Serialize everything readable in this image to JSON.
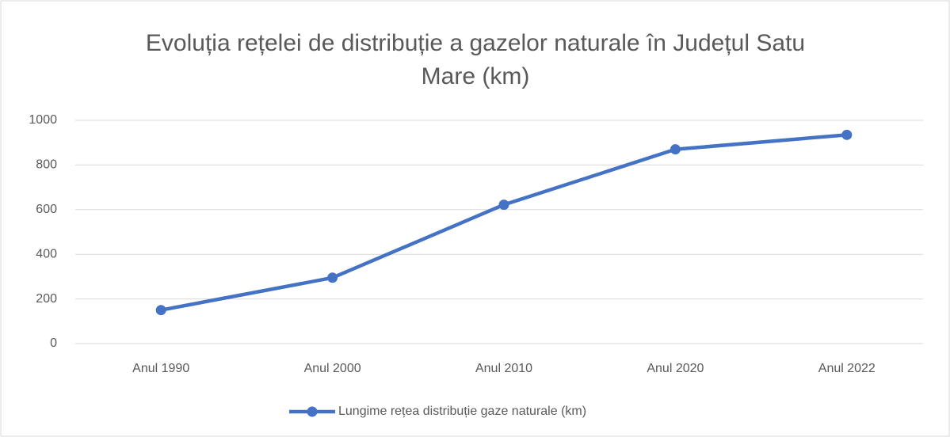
{
  "chart_data": {
    "type": "line",
    "title": "Evoluția rețelei de distribuție a gazelor naturale în Județul Satu Mare (km)",
    "categories": [
      "Anul 1990",
      "Anul 2000",
      "Anul 2010",
      "Anul 2020",
      "Anul 2022"
    ],
    "series": [
      {
        "name": "Lungime rețea distribuție gaze naturale (km)",
        "color": "#4472c4",
        "values": [
          150,
          295,
          622,
          870,
          935
        ]
      }
    ],
    "ylim": [
      0,
      1000
    ],
    "yticks": [
      0,
      200,
      400,
      600,
      800,
      1000
    ],
    "grid": true,
    "legend": "bottom"
  }
}
